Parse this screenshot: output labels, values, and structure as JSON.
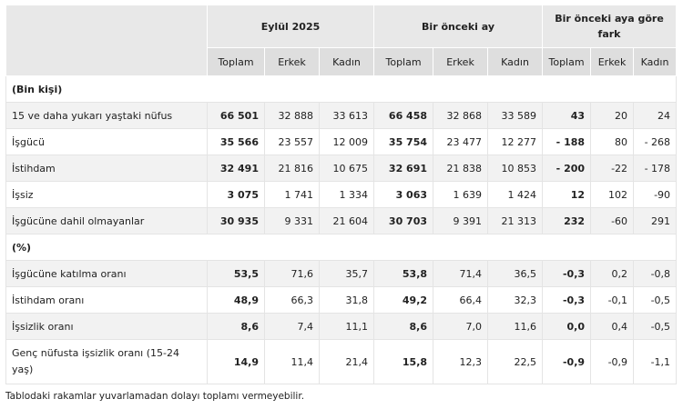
{
  "table": {
    "group_headers": [
      "Eylül 2025",
      "Bir önceki ay",
      "Bir önceki aya göre fark"
    ],
    "sub_headers": [
      "Toplam",
      "Erkek",
      "Kadın",
      "Toplam",
      "Erkek",
      "Kadın",
      "Toplam",
      "Erkek",
      "Kadın"
    ],
    "section_thousands": "(Bin kişi)",
    "rows_thousands": [
      {
        "label": "15 ve daha yukarı yaştaki nüfus",
        "values": [
          "66 501",
          "32 888",
          "33 613",
          "66 458",
          "32 868",
          "33 589",
          "43",
          "20",
          "24"
        ]
      },
      {
        "label": "İşgücü",
        "values": [
          "35 566",
          "23 557",
          "12 009",
          "35 754",
          "23 477",
          "12 277",
          "- 188",
          "80",
          "- 268"
        ]
      },
      {
        "label": "İstihdam",
        "values": [
          "32 491",
          "21 816",
          "10 675",
          "32 691",
          "21 838",
          "10 853",
          "- 200",
          "-22",
          "- 178"
        ]
      },
      {
        "label": "İşsiz",
        "values": [
          "3 075",
          "1 741",
          "1 334",
          "3 063",
          "1 639",
          "1 424",
          "12",
          "102",
          "-90"
        ]
      },
      {
        "label": "İşgücüne dahil olmayanlar",
        "values": [
          "30 935",
          "9 331",
          "21 604",
          "30 703",
          "9 391",
          "21 313",
          "232",
          "-60",
          "291"
        ]
      }
    ],
    "section_percent": "(%)",
    "rows_percent": [
      {
        "label": "İşgücüne katılma oranı",
        "values": [
          "53,5",
          "71,6",
          "35,7",
          "53,8",
          "71,4",
          "36,5",
          "-0,3",
          "0,2",
          "-0,8"
        ]
      },
      {
        "label": "İstihdam oranı",
        "values": [
          "48,9",
          "66,3",
          "31,8",
          "49,2",
          "66,4",
          "32,3",
          "-0,3",
          "-0,1",
          "-0,5"
        ]
      },
      {
        "label": "İşsizlik oranı",
        "values": [
          "8,6",
          "7,4",
          "11,1",
          "8,6",
          "7,0",
          "11,6",
          "0,0",
          "0,4",
          "-0,5"
        ]
      },
      {
        "label": "Genç nüfusta işsizlik oranı (15-24 yaş)",
        "values": [
          "14,9",
          "11,4",
          "21,4",
          "15,8",
          "12,3",
          "22,5",
          "-0,9",
          "-0,9",
          "-1,1"
        ]
      }
    ]
  },
  "footnote": "Tablodaki rakamlar yuvarlamadan dolayı toplamı vermeyebilir."
}
